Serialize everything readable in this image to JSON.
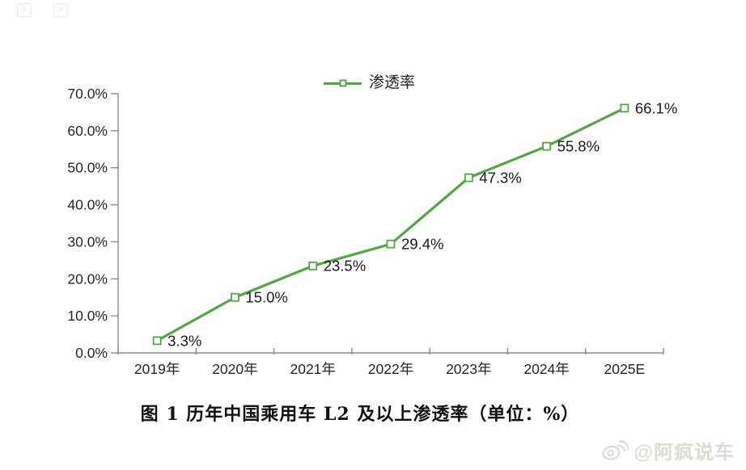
{
  "chart_data": {
    "type": "line",
    "title": "",
    "categories": [
      "2019年",
      "2020年",
      "2021年",
      "2022年",
      "2023年",
      "2024年",
      "2025E"
    ],
    "series": [
      {
        "name": "渗透率",
        "values": [
          3.3,
          15.0,
          23.5,
          29.4,
          47.3,
          55.8,
          66.1
        ]
      }
    ],
    "data_labels": [
      "3.3%",
      "15.0%",
      "23.5%",
      "29.4%",
      "47.3%",
      "55.8%",
      "66.1%"
    ],
    "y_ticks": [
      "70.0%",
      "60.0%",
      "50.0%",
      "40.0%",
      "30.0%",
      "20.0%",
      "10.0%",
      "0.0%"
    ],
    "ylim": [
      0,
      70
    ],
    "xlabel": "",
    "ylabel": "",
    "grid": false,
    "legend_position": "top-center",
    "marker": "hollow-square",
    "line_color": "#55a546",
    "axis_color": "#8c8c8c",
    "tick_text_color": "#262626",
    "data_label_color": "#1a1a1a"
  },
  "legend": {
    "label": "渗透率"
  },
  "caption": "图 1 历年中国乘用车 L2 及以上渗透率（单位：%）",
  "watermark": {
    "handle": "@阿疯说车",
    "icon": "weibo-icon",
    "color": "#dedbd2"
  },
  "decorations": {
    "top_left_glyphs": [
      "image-placeholder-icon",
      "image-placeholder-icon"
    ]
  }
}
